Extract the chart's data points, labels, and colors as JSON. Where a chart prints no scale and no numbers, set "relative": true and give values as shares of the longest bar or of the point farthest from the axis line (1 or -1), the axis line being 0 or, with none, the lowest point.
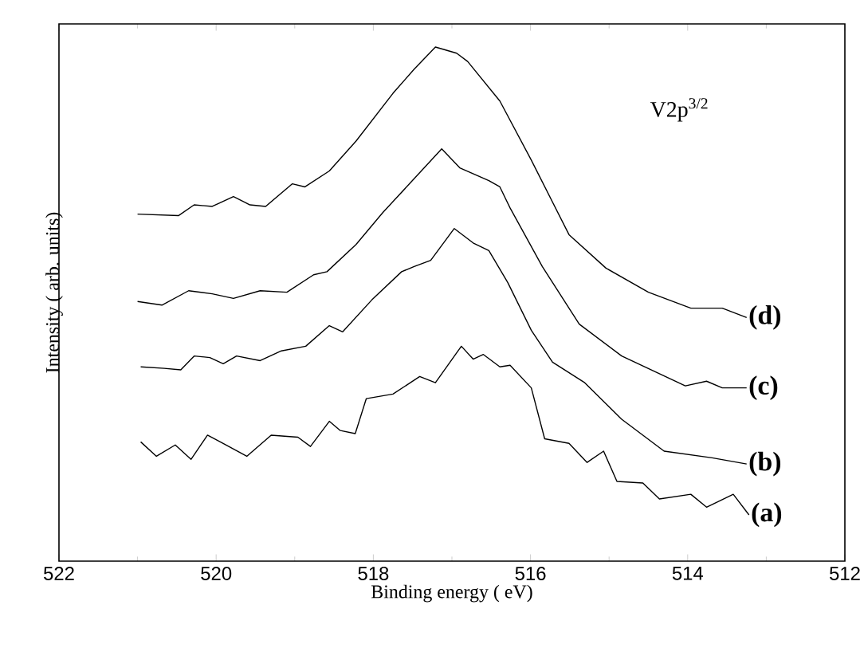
{
  "chart_data": {
    "type": "line",
    "relative": true,
    "xlabel": "Binding energy ( eV)",
    "ylabel": "Intensity ( arb. units)",
    "annotations": [
      "V2p$^{3/2}$"
    ],
    "xlim": [
      522,
      512
    ],
    "xticks": [
      522,
      520,
      518,
      516,
      514,
      512
    ],
    "legend": false,
    "marker": "none",
    "line_style": "solid",
    "grid": false,
    "series": [
      {
        "name": "(a)",
        "color": "#000000",
        "x": [
          520.96,
          520.76,
          520.52,
          520.32,
          520.11,
          519.91,
          519.61,
          519.3,
          518.96,
          518.8,
          518.56,
          518.42,
          518.23,
          518.09,
          517.75,
          517.41,
          517.21,
          516.88,
          516.73,
          516.6,
          516.39,
          516.26,
          515.99,
          515.82,
          515.51,
          515.28,
          515.07,
          514.9,
          514.57,
          514.36,
          513.96,
          513.76,
          513.42,
          513.22
        ],
        "values": [
          0.232,
          0.204,
          0.226,
          0.198,
          0.245,
          0.229,
          0.204,
          0.245,
          0.241,
          0.223,
          0.272,
          0.254,
          0.248,
          0.316,
          0.325,
          0.359,
          0.347,
          0.418,
          0.393,
          0.402,
          0.378,
          0.381,
          0.337,
          0.238,
          0.229,
          0.192,
          0.214,
          0.155,
          0.152,
          0.121,
          0.13,
          0.105,
          0.13,
          0.09
        ]
      },
      {
        "name": "(b)",
        "color": "#000000",
        "x": [
          520.96,
          520.66,
          520.45,
          520.28,
          520.08,
          519.91,
          519.74,
          519.44,
          519.17,
          518.86,
          518.56,
          518.39,
          518.02,
          517.64,
          517.48,
          517.27,
          516.97,
          516.73,
          516.53,
          516.29,
          515.99,
          515.72,
          515.31,
          514.84,
          514.3,
          513.69,
          513.25
        ],
        "values": [
          0.378,
          0.375,
          0.372,
          0.399,
          0.396,
          0.384,
          0.399,
          0.39,
          0.409,
          0.418,
          0.458,
          0.446,
          0.508,
          0.563,
          0.573,
          0.585,
          0.647,
          0.619,
          0.604,
          0.542,
          0.449,
          0.387,
          0.347,
          0.276,
          0.214,
          0.201,
          0.189
        ]
      },
      {
        "name": "(c)",
        "color": "#000000",
        "x": [
          521.0,
          520.69,
          520.35,
          520.05,
          519.78,
          519.44,
          519.1,
          518.76,
          518.59,
          518.22,
          517.88,
          517.54,
          517.13,
          516.9,
          516.53,
          516.39,
          516.26,
          515.85,
          515.38,
          514.84,
          514.03,
          513.76,
          513.56,
          513.25
        ],
        "values": [
          0.505,
          0.498,
          0.526,
          0.52,
          0.511,
          0.526,
          0.523,
          0.557,
          0.563,
          0.616,
          0.678,
          0.734,
          0.802,
          0.765,
          0.74,
          0.728,
          0.687,
          0.573,
          0.461,
          0.399,
          0.341,
          0.35,
          0.337,
          0.337
        ]
      },
      {
        "name": "(d)",
        "color": "#000000",
        "x": [
          521.0,
          520.48,
          520.28,
          520.05,
          519.78,
          519.57,
          519.37,
          519.03,
          518.87,
          518.56,
          518.22,
          517.75,
          517.48,
          517.21,
          516.94,
          516.8,
          516.39,
          515.99,
          515.51,
          515.04,
          514.5,
          513.96,
          513.56,
          513.25
        ],
        "values": [
          0.675,
          0.672,
          0.693,
          0.69,
          0.709,
          0.693,
          0.69,
          0.734,
          0.728,
          0.759,
          0.817,
          0.91,
          0.957,
          1.0,
          0.988,
          0.972,
          0.895,
          0.78,
          0.635,
          0.57,
          0.523,
          0.492,
          0.492,
          0.474
        ]
      }
    ]
  }
}
